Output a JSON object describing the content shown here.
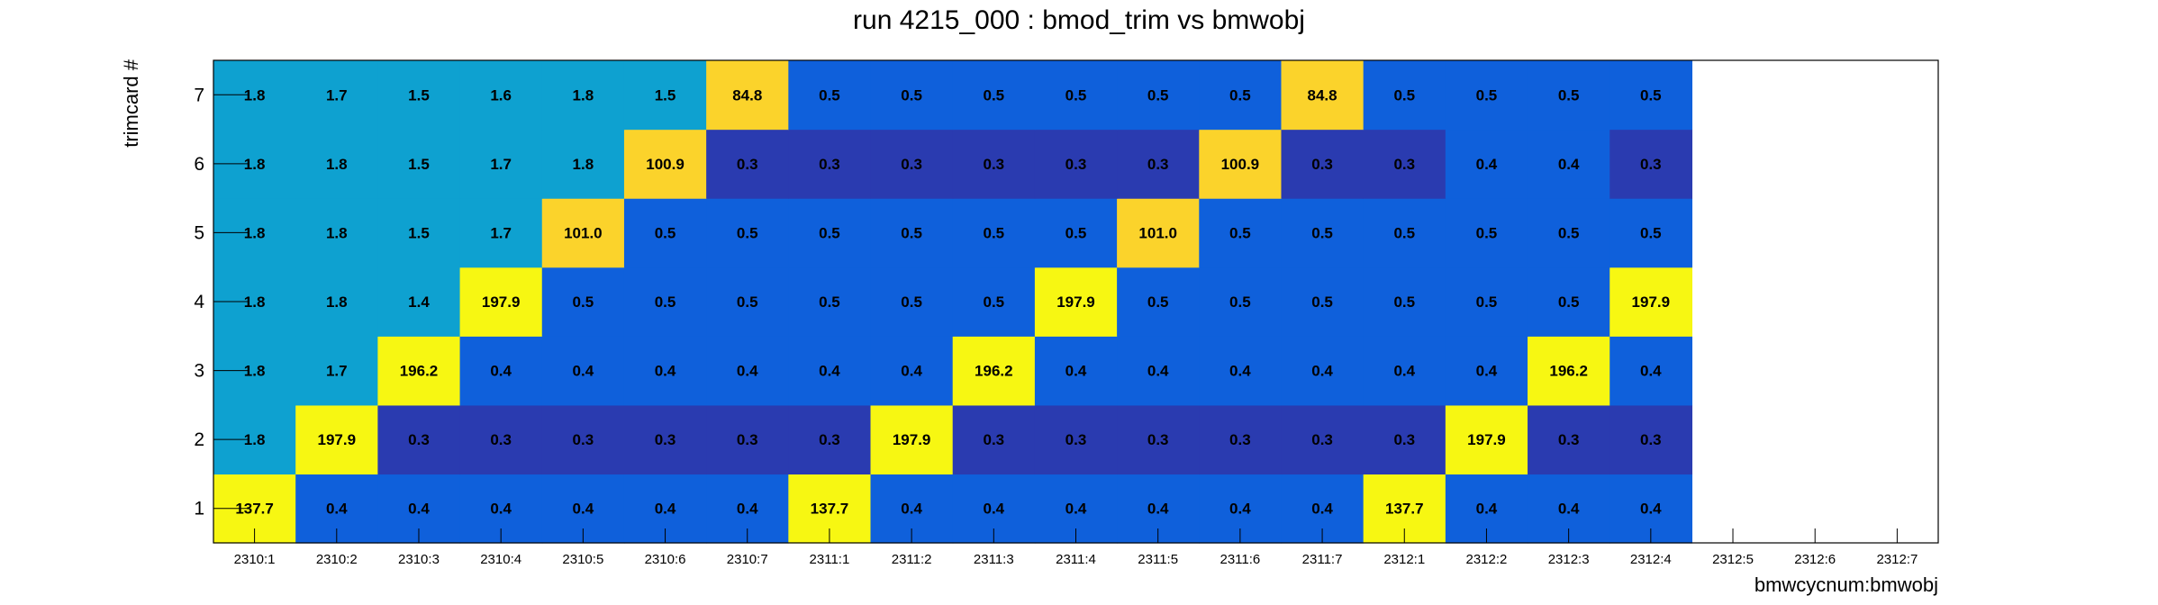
{
  "chart_data": {
    "type": "heatmap",
    "title": "run 4215_000 : bmod_trim vs bmwobj",
    "xlabel": "bmwcycnum:bmwobj",
    "ylabel": "trimcard #",
    "x_categories": [
      "2310:1",
      "2310:2",
      "2310:3",
      "2310:4",
      "2310:5",
      "2310:6",
      "2310:7",
      "2311:1",
      "2311:2",
      "2311:3",
      "2311:4",
      "2311:5",
      "2311:6",
      "2311:7",
      "2312:1",
      "2312:2",
      "2312:3",
      "2312:4",
      "2312:5",
      "2312:6",
      "2312:7"
    ],
    "y_categories": [
      "1",
      "2",
      "3",
      "4",
      "5",
      "6",
      "7"
    ],
    "values": [
      [
        137.7,
        0.4,
        0.4,
        0.4,
        0.4,
        0.4,
        0.4,
        137.7,
        0.4,
        0.4,
        0.4,
        0.4,
        0.4,
        0.4,
        137.7,
        0.4,
        0.4,
        0.4,
        null,
        null,
        null
      ],
      [
        1.8,
        197.9,
        0.3,
        0.3,
        0.3,
        0.3,
        0.3,
        0.3,
        197.9,
        0.3,
        0.3,
        0.3,
        0.3,
        0.3,
        0.3,
        197.9,
        0.3,
        0.3,
        null,
        null,
        null
      ],
      [
        1.8,
        1.7,
        196.2,
        0.4,
        0.4,
        0.4,
        0.4,
        0.4,
        0.4,
        196.2,
        0.4,
        0.4,
        0.4,
        0.4,
        0.4,
        0.4,
        196.2,
        0.4,
        null,
        null,
        null
      ],
      [
        1.8,
        1.8,
        1.4,
        197.9,
        0.5,
        0.5,
        0.5,
        0.5,
        0.5,
        0.5,
        197.9,
        0.5,
        0.5,
        0.5,
        0.5,
        0.5,
        0.5,
        197.9,
        null,
        null,
        null
      ],
      [
        1.8,
        1.8,
        1.5,
        1.7,
        101.0,
        0.5,
        0.5,
        0.5,
        0.5,
        0.5,
        0.5,
        101.0,
        0.5,
        0.5,
        0.5,
        0.5,
        0.5,
        0.5,
        null,
        null,
        null
      ],
      [
        1.8,
        1.8,
        1.5,
        1.7,
        1.8,
        100.9,
        0.3,
        0.3,
        0.3,
        0.3,
        0.3,
        0.3,
        100.9,
        0.3,
        0.3,
        0.4,
        0.4,
        0.3,
        null,
        null,
        null
      ],
      [
        1.8,
        1.7,
        1.5,
        1.6,
        1.8,
        1.5,
        84.8,
        0.5,
        0.5,
        0.5,
        0.5,
        0.5,
        0.5,
        84.8,
        0.5,
        0.5,
        0.5,
        0.5,
        null,
        null,
        null
      ]
    ],
    "value_labels": [
      [
        "137.7",
        "0.4",
        "0.4",
        "0.4",
        "0.4",
        "0.4",
        "0.4",
        "137.7",
        "0.4",
        "0.4",
        "0.4",
        "0.4",
        "0.4",
        "0.4",
        "137.7",
        "0.4",
        "0.4",
        "0.4",
        "",
        "",
        ""
      ],
      [
        "1.8",
        "197.9",
        "0.3",
        "0.3",
        "0.3",
        "0.3",
        "0.3",
        "0.3",
        "197.9",
        "0.3",
        "0.3",
        "0.3",
        "0.3",
        "0.3",
        "0.3",
        "197.9",
        "0.3",
        "0.3",
        "",
        "",
        ""
      ],
      [
        "1.8",
        "1.7",
        "196.2",
        "0.4",
        "0.4",
        "0.4",
        "0.4",
        "0.4",
        "0.4",
        "196.2",
        "0.4",
        "0.4",
        "0.4",
        "0.4",
        "0.4",
        "0.4",
        "196.2",
        "0.4",
        "",
        "",
        ""
      ],
      [
        "1.8",
        "1.8",
        "1.4",
        "197.9",
        "0.5",
        "0.5",
        "0.5",
        "0.5",
        "0.5",
        "0.5",
        "197.9",
        "0.5",
        "0.5",
        "0.5",
        "0.5",
        "0.5",
        "0.5",
        "197.9",
        "",
        "",
        ""
      ],
      [
        "1.8",
        "1.8",
        "1.5",
        "1.7",
        "101.0",
        "0.5",
        "0.5",
        "0.5",
        "0.5",
        "0.5",
        "0.5",
        "101.0",
        "0.5",
        "0.5",
        "0.5",
        "0.5",
        "0.5",
        "0.5",
        "",
        "",
        ""
      ],
      [
        "1.8",
        "1.8",
        "1.5",
        "1.7",
        "1.8",
        "100.9",
        "0.3",
        "0.3",
        "0.3",
        "0.3",
        "0.3",
        "0.3",
        "100.9",
        "0.3",
        "0.3",
        "0.4",
        "0.4",
        "0.3",
        "",
        "",
        ""
      ],
      [
        "1.8",
        "1.7",
        "1.5",
        "1.6",
        "1.8",
        "1.5",
        "84.8",
        "0.5",
        "0.5",
        "0.5",
        "0.5",
        "0.5",
        "0.5",
        "84.8",
        "0.5",
        "0.5",
        "0.5",
        "0.5",
        "",
        "",
        ""
      ]
    ],
    "grid": false,
    "legend": "none",
    "colors": {
      "background": "#ffffff",
      "frame": "#000000",
      "high": "#f7f712",
      "mid_high": "#fbd32b",
      "mid_low": "#0ea1d0",
      "low": "#0f60db",
      "lowest": "#2a3bb0"
    }
  }
}
